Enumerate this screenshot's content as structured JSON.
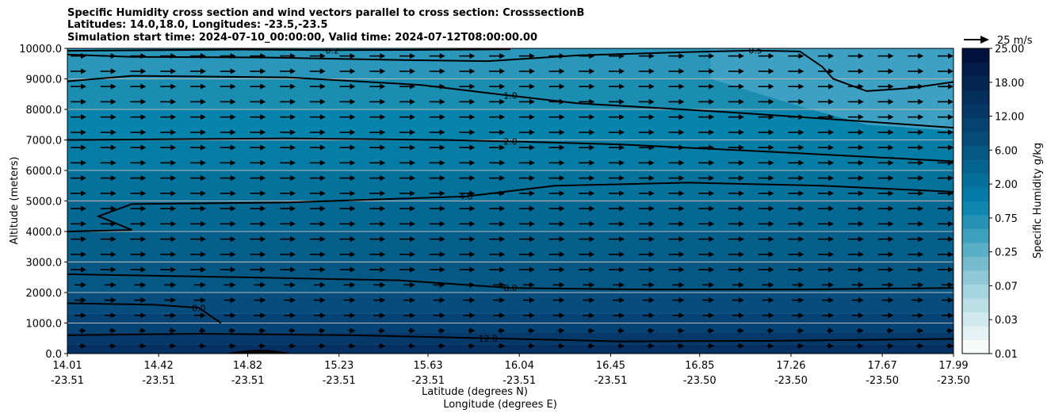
{
  "chart_data": {
    "type": "heatmap",
    "title_lines": [
      "Specific Humidity cross section and wind vectors parallel to cross section: CrosssectionB",
      "Latitudes: 14.0,18.0, Longitudes: -23.5,-23.5",
      "Simulation start time: 2024-07-10_00:00:00, Valid time: 2024-07-12T08:00:00.00"
    ],
    "ylabel": "Altitude (meters)",
    "xlabel_lat": "Latitude (degrees N)",
    "xlabel_lon": "Longitude (degrees E)",
    "ylim": [
      0,
      10000
    ],
    "y_ticks": [
      "0.0",
      "1000.0",
      "2000.0",
      "3000.0",
      "4000.0",
      "5000.0",
      "6000.0",
      "7000.0",
      "8000.0",
      "9000.0",
      "10000.0"
    ],
    "x_ticks_lat": [
      "14.01",
      "14.42",
      "14.82",
      "15.23",
      "15.63",
      "16.04",
      "16.45",
      "16.85",
      "17.26",
      "17.67",
      "17.99"
    ],
    "x_ticks_lon": [
      "-23.51",
      "-23.51",
      "-23.51",
      "-23.51",
      "-23.51",
      "-23.51",
      "-23.51",
      "-23.50",
      "-23.50",
      "-23.50",
      "-23.50"
    ],
    "colorbar": {
      "label": "Specific Humidity g/kg",
      "tick_labels": [
        "0.01",
        "0.03",
        "0.07",
        "0.25",
        "0.75",
        "2.00",
        "6.00",
        "12.00",
        "18.00",
        "25.00"
      ],
      "levels": [
        0.01,
        0.02,
        0.03,
        0.05,
        0.07,
        0.1,
        0.25,
        0.5,
        0.75,
        1,
        2,
        3,
        4,
        6,
        8,
        10,
        12,
        14,
        16,
        18,
        20,
        25
      ],
      "colors": [
        "#f6fbfc",
        "#e4f2f5",
        "#d0e9ee",
        "#bcdfe7",
        "#a6d4df",
        "#8fc8d7",
        "#76bbce",
        "#5aaec6",
        "#3ea1bd",
        "#2693b6",
        "#0e86b0",
        "#057aa7",
        "#056f9c",
        "#05638f",
        "#055884",
        "#064c79",
        "#06426f",
        "#053865",
        "#042e5b",
        "#032552",
        "#021b48",
        "#01113d"
      ]
    },
    "quiver_key": {
      "label": "25 m/s",
      "speed": 25
    },
    "grid": "horizontal",
    "contours": [
      {
        "level": "0.2",
        "points": [
          [
            14.01,
            9920
          ],
          [
            14.8,
            9960
          ],
          [
            15.2,
            9940
          ],
          [
            15.6,
            9950
          ],
          [
            16.0,
            9970
          ]
        ]
      },
      {
        "level": "0.5",
        "points": [
          [
            14.01,
            9800
          ],
          [
            14.3,
            9720
          ],
          [
            14.9,
            9700
          ],
          [
            15.5,
            9620
          ],
          [
            15.9,
            9580
          ],
          [
            16.3,
            9770
          ],
          [
            16.8,
            9880
          ],
          [
            17.1,
            9930
          ],
          [
            17.3,
            9900
          ],
          [
            17.4,
            9400
          ],
          [
            17.45,
            9000
          ],
          [
            17.6,
            8600
          ],
          [
            17.8,
            8700
          ],
          [
            17.99,
            8900
          ]
        ]
      },
      {
        "level": "1.0",
        "points": [
          [
            14.01,
            8920
          ],
          [
            14.3,
            9100
          ],
          [
            15.0,
            9050
          ],
          [
            15.6,
            8800
          ],
          [
            16.0,
            8450
          ],
          [
            16.3,
            8200
          ],
          [
            17.0,
            7900
          ],
          [
            17.6,
            7600
          ],
          [
            17.99,
            7400
          ]
        ]
      },
      {
        "level": "2.0",
        "points": [
          [
            14.01,
            7000
          ],
          [
            15.0,
            7050
          ],
          [
            15.7,
            7000
          ],
          [
            16.0,
            6950
          ],
          [
            16.5,
            6850
          ],
          [
            17.2,
            6600
          ],
          [
            17.99,
            6300
          ]
        ]
      },
      {
        "level": "4.0",
        "points": [
          [
            14.01,
            4000
          ],
          [
            14.3,
            4050
          ],
          [
            14.15,
            4500
          ],
          [
            14.3,
            4900
          ],
          [
            15.0,
            4950
          ],
          [
            15.8,
            5150
          ],
          [
            16.2,
            5500
          ],
          [
            16.8,
            5600
          ],
          [
            17.4,
            5500
          ],
          [
            17.99,
            5300
          ]
        ]
      },
      {
        "level": "8.0",
        "points": [
          [
            14.01,
            2600
          ],
          [
            14.8,
            2500
          ],
          [
            15.5,
            2400
          ],
          [
            16.0,
            2150
          ],
          [
            16.6,
            2100
          ],
          [
            17.3,
            2100
          ],
          [
            17.99,
            2150
          ]
        ]
      },
      {
        "level": "8.0",
        "points": [
          [
            14.01,
            1650
          ],
          [
            14.4,
            1600
          ],
          [
            14.6,
            1500
          ],
          [
            14.7,
            1000
          ]
        ]
      },
      {
        "level": "12.0",
        "points": [
          [
            14.01,
            600
          ],
          [
            14.6,
            650
          ],
          [
            15.3,
            600
          ],
          [
            15.9,
            500
          ],
          [
            16.5,
            400
          ],
          [
            17.2,
            420
          ],
          [
            17.99,
            480
          ]
        ]
      }
    ]
  }
}
